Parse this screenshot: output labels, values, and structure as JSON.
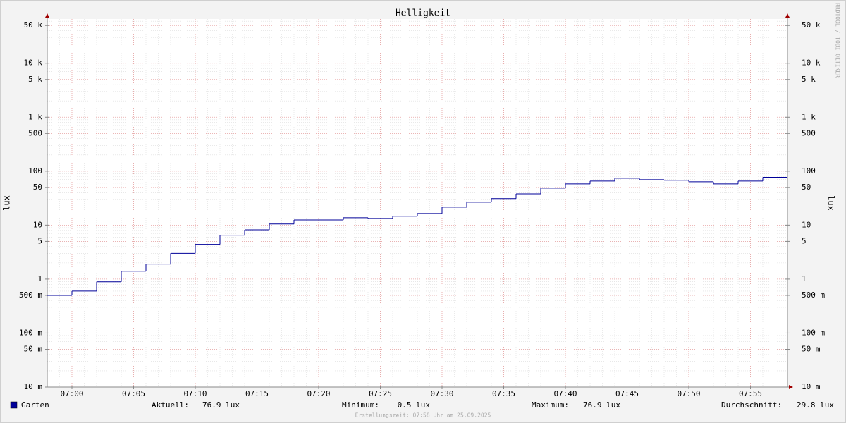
{
  "chart_data": {
    "type": "step",
    "title": "Helligkeit",
    "ylabel": "lux",
    "y2label": "lux",
    "watermark": "RRDTOOL / TOBI OETIKER",
    "footer": "Erstellungszeit: 07:58 Uhr am 25.09.2025",
    "log_scale": true,
    "grid": true,
    "x": [
      "06:58",
      "07:00",
      "07:02",
      "07:04",
      "07:06",
      "07:08",
      "07:10",
      "07:12",
      "07:14",
      "07:16",
      "07:18",
      "07:20",
      "07:22",
      "07:24",
      "07:26",
      "07:28",
      "07:30",
      "07:32",
      "07:34",
      "07:36",
      "07:38",
      "07:40",
      "07:42",
      "07:44",
      "07:46",
      "07:48",
      "07:50",
      "07:52",
      "07:54",
      "07:56"
    ],
    "xlim": [
      "06:58",
      "07:58"
    ],
    "xticks": [
      "07:00",
      "07:05",
      "07:10",
      "07:15",
      "07:20",
      "07:25",
      "07:30",
      "07:35",
      "07:40",
      "07:45",
      "07:50",
      "07:55"
    ],
    "ylim": [
      0.01,
      66000
    ],
    "yticks": [
      {
        "value": 0.01,
        "label": "10 m"
      },
      {
        "value": 0.05,
        "label": "50 m"
      },
      {
        "value": 0.1,
        "label": "100 m"
      },
      {
        "value": 0.5,
        "label": "500 m"
      },
      1,
      5,
      10,
      50,
      100,
      500,
      {
        "value": 1000,
        "label": "1 k"
      },
      {
        "value": 5000,
        "label": "5 k"
      },
      {
        "value": 10000,
        "label": "10 k"
      },
      {
        "value": 50000,
        "label": "50 k"
      }
    ],
    "series": [
      {
        "name": "Garten",
        "color": "#000099",
        "values": [
          0.5,
          0.6,
          0.89,
          1.4,
          1.9,
          3.0,
          4.4,
          6.5,
          8.2,
          10.5,
          12.5,
          12.5,
          13.7,
          13.3,
          14.6,
          16.4,
          21.5,
          26.6,
          31,
          38,
          48.5,
          58,
          65.6,
          74,
          69.7,
          67.8,
          63.6,
          58,
          65.6,
          76.9
        ]
      }
    ],
    "legend_stats": [
      {
        "label": "Aktuell:",
        "value": "76.9 lux"
      },
      {
        "label": "Minimum:",
        "value": "0.5 lux"
      },
      {
        "label": "Maximum:",
        "value": "76.9 lux"
      },
      {
        "label": "Durchschnitt:",
        "value": "29.8 lux"
      }
    ]
  }
}
